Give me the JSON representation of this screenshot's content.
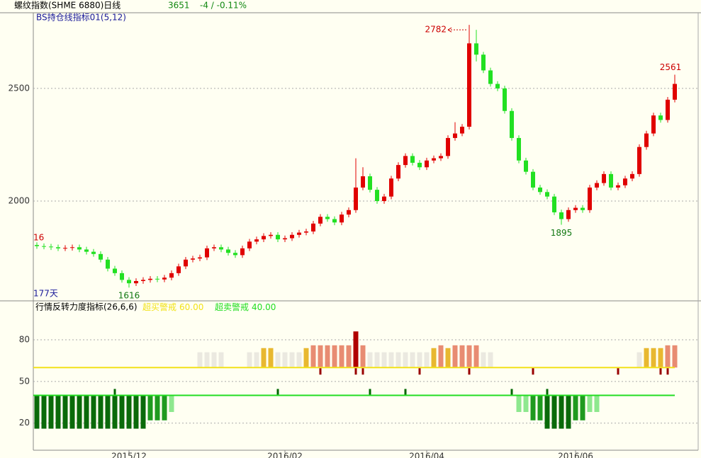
{
  "header": {
    "title": "螺纹指数(SHME 6880)日线",
    "last": 3651,
    "change": "-4 / -0.11%"
  },
  "chart_data": [
    {
      "type": "candlestick",
      "title": "BS持仓线指标01(5,12)",
      "open": [
        1805,
        1800,
        1798,
        1795,
        1790,
        1792,
        1795,
        1785,
        1775,
        1765,
        1740,
        1700,
        1680,
        1650,
        1635,
        1645,
        1650,
        1655,
        1652,
        1660,
        1680,
        1710,
        1740,
        1745,
        1750,
        1790,
        1795,
        1785,
        1770,
        1760,
        1790,
        1820,
        1830,
        1845,
        1850,
        1830,
        1835,
        1850,
        1860,
        1865,
        1900,
        1930,
        1920,
        1905,
        1940,
        1960,
        2060,
        2110,
        2050,
        2000,
        2020,
        2100,
        2160,
        2200,
        2170,
        2150,
        2180,
        2190,
        2200,
        2280,
        2300,
        2330,
        2700,
        2650,
        2580,
        2520,
        2500,
        2400,
        2280,
        2180,
        2130,
        2060,
        2040,
        2020,
        1950,
        1920,
        1960,
        1970,
        1960,
        2060,
        2080,
        2120,
        2060,
        2070,
        2100,
        2120,
        2240,
        2300,
        2380,
        2360,
        2450
      ],
      "high": [
        1817,
        1812,
        1810,
        1807,
        1804,
        1807,
        1807,
        1797,
        1787,
        1777,
        1752,
        1712,
        1692,
        1662,
        1657,
        1662,
        1667,
        1667,
        1672,
        1692,
        1722,
        1752,
        1757,
        1762,
        1802,
        1807,
        1807,
        1797,
        1782,
        1802,
        1832,
        1842,
        1857,
        1862,
        1862,
        1847,
        1862,
        1872,
        1877,
        1912,
        1942,
        1942,
        1932,
        1952,
        1972,
        2190,
        2150,
        2122,
        2062,
        2032,
        2112,
        2172,
        2212,
        2212,
        2182,
        2192,
        2202,
        2212,
        2292,
        2350,
        2342,
        2782,
        2760,
        2662,
        2592,
        2532,
        2512,
        2412,
        2292,
        2192,
        2142,
        2072,
        2052,
        2032,
        1962,
        1972,
        1982,
        1982,
        2072,
        2092,
        2132,
        2132,
        2082,
        2112,
        2132,
        2252,
        2312,
        2392,
        2392,
        2462,
        2561
      ],
      "low": [
        1788,
        1786,
        1783,
        1778,
        1778,
        1780,
        1773,
        1763,
        1753,
        1728,
        1688,
        1668,
        1638,
        1616,
        1623,
        1633,
        1638,
        1640,
        1640,
        1648,
        1668,
        1698,
        1728,
        1733,
        1738,
        1778,
        1773,
        1758,
        1748,
        1748,
        1778,
        1808,
        1818,
        1833,
        1818,
        1818,
        1823,
        1838,
        1848,
        1853,
        1888,
        1908,
        1893,
        1893,
        1928,
        1948,
        2048,
        2038,
        1988,
        1988,
        2008,
        2088,
        2148,
        2158,
        2138,
        2138,
        2168,
        2178,
        2188,
        2268,
        2288,
        2318,
        2620,
        2568,
        2508,
        2488,
        2388,
        2268,
        2168,
        2118,
        2048,
        2028,
        2008,
        1938,
        1895,
        1908,
        1948,
        1948,
        1948,
        2048,
        2068,
        2048,
        2048,
        2058,
        2088,
        2108,
        2228,
        2288,
        2348,
        2348,
        2438
      ],
      "close": [
        1800,
        1798,
        1795,
        1790,
        1792,
        1795,
        1785,
        1775,
        1765,
        1740,
        1700,
        1680,
        1650,
        1635,
        1645,
        1650,
        1655,
        1652,
        1660,
        1680,
        1710,
        1740,
        1745,
        1750,
        1790,
        1795,
        1785,
        1770,
        1760,
        1790,
        1820,
        1830,
        1845,
        1850,
        1830,
        1835,
        1850,
        1860,
        1865,
        1900,
        1930,
        1920,
        1905,
        1940,
        1960,
        2060,
        2110,
        2050,
        2000,
        2020,
        2100,
        2160,
        2200,
        2170,
        2150,
        2180,
        2190,
        2200,
        2280,
        2300,
        2330,
        2700,
        2650,
        2580,
        2520,
        2500,
        2400,
        2280,
        2180,
        2130,
        2060,
        2040,
        2020,
        1950,
        1920,
        1960,
        1970,
        1960,
        2060,
        2080,
        2120,
        2060,
        2070,
        2100,
        2120,
        2240,
        2300,
        2380,
        2360,
        2450,
        2520
      ],
      "up_color": "#e00000",
      "down_color": "#22e022",
      "ylim": [
        1557,
        2836
      ],
      "yticks": [
        2000,
        2500
      ],
      "grid": true,
      "labeled_highs": [
        61,
        90
      ],
      "labeled_lows": [
        13,
        74
      ],
      "note_left": "16",
      "days": "177天"
    },
    {
      "type": "reversal",
      "title": "行情反转力度指标(26,6,6)",
      "categories": [
        null,
        null,
        null,
        null,
        null,
        null,
        null,
        null,
        null,
        null,
        null,
        null,
        null,
        "2015/12",
        null,
        null,
        null,
        null,
        null,
        null,
        null,
        null,
        null,
        null,
        null,
        null,
        null,
        null,
        null,
        null,
        null,
        null,
        null,
        null,
        null,
        "2016/02",
        null,
        null,
        null,
        null,
        null,
        null,
        null,
        null,
        null,
        null,
        null,
        null,
        null,
        null,
        null,
        null,
        null,
        null,
        null,
        "2016/04",
        null,
        null,
        null,
        null,
        null,
        null,
        null,
        null,
        null,
        null,
        null,
        null,
        null,
        null,
        null,
        null,
        null,
        null,
        null,
        null,
        "2016/06",
        null,
        null,
        null,
        null,
        null,
        null,
        null,
        null,
        null,
        null,
        null,
        null,
        null,
        null
      ],
      "values": [
        16,
        16,
        16,
        16,
        16,
        16,
        16,
        16,
        16,
        16,
        16,
        16,
        16,
        16,
        16,
        16,
        22,
        22,
        22,
        28,
        50,
        50,
        50,
        71,
        71,
        71,
        71,
        50,
        50,
        50,
        71,
        71,
        74,
        74,
        71,
        71,
        71,
        71,
        74,
        76,
        76,
        76,
        76,
        76,
        76,
        86,
        76,
        71,
        71,
        71,
        71,
        71,
        71,
        71,
        71,
        71,
        74,
        76,
        74,
        76,
        76,
        76,
        76,
        71,
        71,
        50,
        50,
        50,
        28,
        28,
        22,
        22,
        16,
        16,
        16,
        16,
        22,
        22,
        28,
        28,
        50,
        50,
        50,
        50,
        50,
        71,
        74,
        74,
        74,
        76,
        76
      ],
      "overbought": {
        "label": "超买警戒",
        "value": 60,
        "value_label": "60.00",
        "color": "#f2e21a"
      },
      "oversold": {
        "label": "超卖警戒",
        "value": 40,
        "value_label": "40.00",
        "color": "#22dd22"
      },
      "ylim": [
        1,
        108
      ],
      "yticks": [
        20,
        50,
        80
      ],
      "grid": true,
      "sell_signals": [
        40,
        45,
        46,
        54,
        61,
        70,
        82,
        88,
        89
      ],
      "buy_signals": [
        11,
        34,
        47,
        52,
        67,
        72
      ]
    }
  ]
}
